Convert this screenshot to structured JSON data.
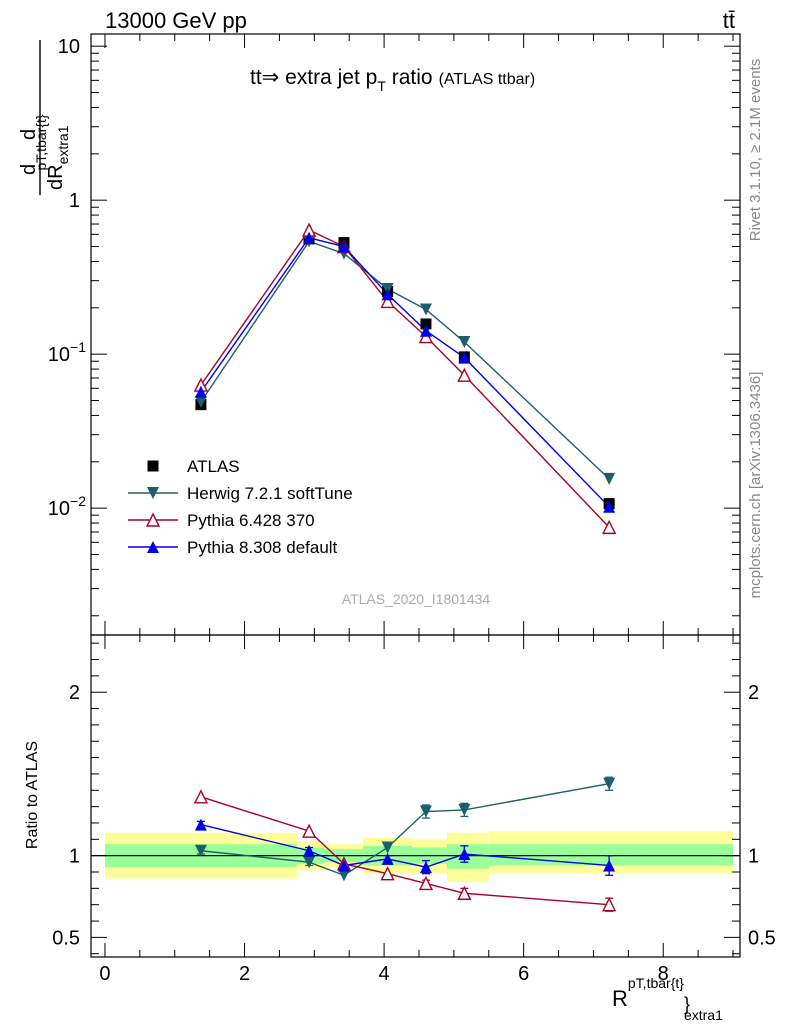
{
  "header": {
    "energy": "13000 GeV pp",
    "process": "tt̄"
  },
  "side_labels": {
    "rivet": "Rivet 3.1.10, ≥ 2.1M events",
    "mcplots": "mcplots.cern.ch [arXiv:1306.3436]"
  },
  "watermark": "ATLAS_2020_I1801434",
  "chart_data": [
    {
      "type": "scatter",
      "title": {
        "main": "tt⇒ extra jet p",
        "sub": "T",
        "rest": " ratio",
        "small": "(ATLAS ttbar)"
      },
      "ylabel": {
        "prefix": "d",
        "mid": "d",
        "base": "dR",
        "sub": "extra1",
        "sup": "pT,tbar{t}"
      },
      "ylog": true,
      "ylim": [
        0.0015,
        12
      ],
      "xlim": [
        -0.2,
        9.1
      ],
      "yticks": [
        {
          "v": 10,
          "base": "10",
          "exp": ""
        },
        {
          "v": 1,
          "base": "1",
          "exp": ""
        },
        {
          "v": 0.1,
          "base": "10",
          "exp": "−1"
        },
        {
          "v": 0.01,
          "base": "10",
          "exp": "−2"
        }
      ],
      "legend_position": "lower-left",
      "series": [
        {
          "name": "ATLAS",
          "color": "#000000",
          "marker": "square",
          "x": [
            1.375,
            2.925,
            3.425,
            4.05,
            4.6,
            5.15,
            7.225
          ],
          "y": [
            0.047,
            0.56,
            0.53,
            0.255,
            0.157,
            0.096,
            0.0107
          ]
        },
        {
          "name": "Herwig 7.2.1 softTune",
          "color": "#1c5f6b",
          "marker": "triangle-down",
          "x": [
            1.375,
            2.925,
            3.425,
            4.05,
            4.6,
            5.15,
            7.225
          ],
          "y": [
            0.049,
            0.54,
            0.45,
            0.265,
            0.195,
            0.12,
            0.0155
          ]
        },
        {
          "name": "Pythia 6.428 370",
          "color": "#a8002a",
          "marker": "triangle-up-open",
          "x": [
            1.375,
            2.925,
            3.425,
            4.05,
            4.6,
            5.15,
            7.225
          ],
          "y": [
            0.063,
            0.64,
            0.5,
            0.22,
            0.13,
            0.073,
            0.0075
          ]
        },
        {
          "name": "Pythia 8.308 default",
          "color": "#0000ee",
          "marker": "triangle-up",
          "x": [
            1.375,
            2.925,
            3.425,
            4.05,
            4.6,
            5.15,
            7.225
          ],
          "y": [
            0.057,
            0.57,
            0.5,
            0.245,
            0.142,
            0.095,
            0.0102
          ]
        }
      ]
    },
    {
      "type": "scatter",
      "ylabel": "Ratio to ATLAS",
      "xlabel": {
        "base": "R",
        "sup": "pT,tbar{t}",
        "sub": "extra1",
        "brace": "}"
      },
      "xlim": [
        -0.2,
        9.1
      ],
      "ylim": [
        0.38,
        2.35
      ],
      "xticks": [
        0,
        2,
        4,
        6,
        8
      ],
      "yticks": [
        {
          "v": 0.5,
          "label": "0.5"
        },
        {
          "v": 1,
          "label": "1"
        },
        {
          "v": 2,
          "label": "2"
        }
      ],
      "bands": [
        {
          "x0": 0.0,
          "x1": 2.75,
          "y_in": [
            0.93,
            1.07
          ],
          "y_out": [
            0.86,
            1.14
          ]
        },
        {
          "x0": 2.75,
          "x1": 3.15,
          "y_in": [
            0.95,
            1.05
          ],
          "y_out": [
            0.91,
            1.09
          ]
        },
        {
          "x0": 3.15,
          "x1": 3.7,
          "y_in": [
            0.96,
            1.04
          ],
          "y_out": [
            0.93,
            1.07
          ]
        },
        {
          "x0": 3.7,
          "x1": 4.4,
          "y_in": [
            0.94,
            1.06
          ],
          "y_out": [
            0.89,
            1.11
          ]
        },
        {
          "x0": 4.4,
          "x1": 4.9,
          "y_in": [
            0.95,
            1.05
          ],
          "y_out": [
            0.89,
            1.1
          ]
        },
        {
          "x0": 4.9,
          "x1": 5.5,
          "y_in": [
            0.92,
            1.07
          ],
          "y_out": [
            0.84,
            1.14
          ]
        },
        {
          "x0": 5.5,
          "x1": 9.0,
          "y_in": [
            0.94,
            1.07
          ],
          "y_out": [
            0.89,
            1.15
          ]
        }
      ],
      "series": [
        {
          "name": "Herwig 7.2.1 softTune",
          "color": "#1c5f6b",
          "marker": "triangle-down",
          "x": [
            1.375,
            2.925,
            3.425,
            4.05,
            4.6,
            5.15,
            7.225
          ],
          "y": [
            1.03,
            0.96,
            0.88,
            1.05,
            1.27,
            1.28,
            1.44
          ],
          "err": [
            0.02,
            0.02,
            0.0,
            0.0,
            0.04,
            0.04,
            0.04
          ]
        },
        {
          "name": "Pythia 6.428 370",
          "color": "#a8002a",
          "marker": "triangle-up-open",
          "x": [
            1.375,
            2.925,
            3.425,
            4.05,
            4.6,
            5.15,
            7.225
          ],
          "y": [
            1.36,
            1.15,
            0.95,
            0.89,
            0.83,
            0.77,
            0.7
          ],
          "err": [
            0.0,
            0.0,
            0.0,
            0.0,
            0.02,
            0.03,
            0.04
          ]
        },
        {
          "name": "Pythia 8.308 default",
          "color": "#0000ee",
          "marker": "triangle-up",
          "x": [
            1.375,
            2.925,
            3.425,
            4.05,
            4.6,
            5.15,
            7.225
          ],
          "y": [
            1.19,
            1.03,
            0.94,
            0.98,
            0.93,
            1.01,
            0.94
          ],
          "err": [
            0.02,
            0.02,
            0.0,
            0.02,
            0.04,
            0.05,
            0.06
          ]
        }
      ]
    }
  ]
}
